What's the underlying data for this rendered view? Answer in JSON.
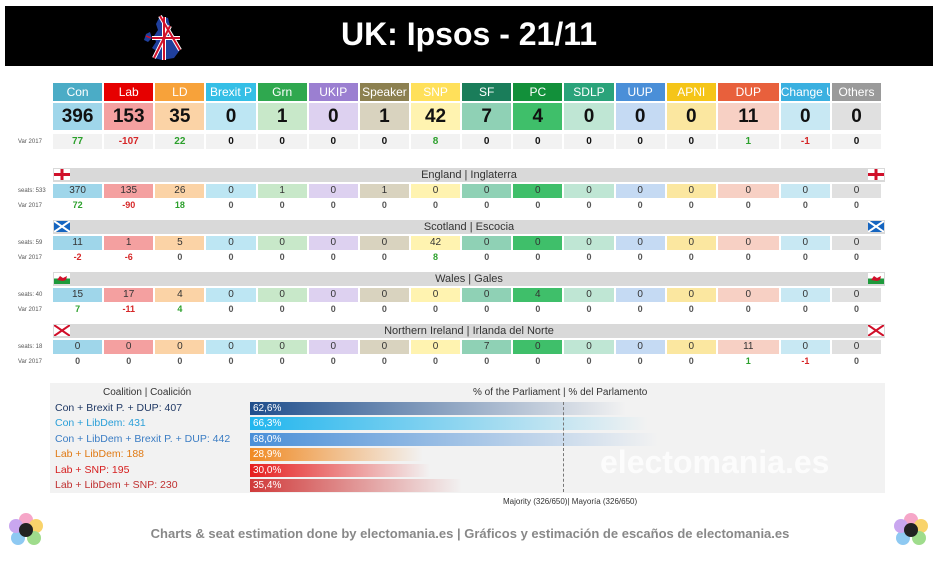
{
  "title": "UK: Ipsos - 21/11",
  "parties": [
    {
      "name": "Con",
      "color": "#4bacc6",
      "light": "#9fd6ea",
      "seats": 396,
      "var": "77",
      "vcls": "pos"
    },
    {
      "name": "Lab",
      "color": "#e60000",
      "light": "#f4a0a0",
      "seats": 153,
      "var": "-107",
      "vcls": "neg"
    },
    {
      "name": "LD",
      "color": "#f7a23a",
      "light": "#fbd3a6",
      "seats": 35,
      "var": "22",
      "vcls": "pos"
    },
    {
      "name": "Brexit P",
      "color": "#35bfe6",
      "light": "#bde6f3",
      "seats": 0,
      "var": "0",
      "vcls": ""
    },
    {
      "name": "Grn",
      "color": "#2fa84f",
      "light": "#c8e8c9",
      "seats": 1,
      "var": "0",
      "vcls": ""
    },
    {
      "name": "UKIP",
      "color": "#9b7fd1",
      "light": "#ddd1f0",
      "seats": 0,
      "var": "0",
      "vcls": ""
    },
    {
      "name": "Speaker",
      "color": "#8c8050",
      "light": "#d9d3bf",
      "seats": 1,
      "var": "0",
      "vcls": ""
    },
    {
      "name": "SNP",
      "color": "#ffe05a",
      "light": "#fff3b0",
      "seats": 42,
      "var": "8",
      "vcls": "pos"
    },
    {
      "name": "SF",
      "color": "#1a7d5a",
      "light": "#8fd1b5",
      "seats": 7,
      "var": "0",
      "vcls": ""
    },
    {
      "name": "PC",
      "color": "#12903a",
      "light": "#3fbf6a",
      "seats": 4,
      "var": "0",
      "vcls": ""
    },
    {
      "name": "SDLP",
      "color": "#2aa37a",
      "light": "#bfe6d4",
      "seats": 0,
      "var": "0",
      "vcls": ""
    },
    {
      "name": "UUP",
      "color": "#4a8fd8",
      "light": "#c5daf3",
      "seats": 0,
      "var": "0",
      "vcls": ""
    },
    {
      "name": "APNI",
      "color": "#f5c518",
      "light": "#fbe7a0",
      "seats": 0,
      "var": "0",
      "vcls": ""
    },
    {
      "name": "DUP",
      "color": "#e8603c",
      "light": "#f7d0c4",
      "seats": 11,
      "var": "1",
      "vcls": "pos"
    },
    {
      "name": "Change UK",
      "color": "#3ab0e0",
      "light": "#c8e8f3",
      "seats": 0,
      "var": "-1",
      "vcls": "neg"
    },
    {
      "name": "Others",
      "color": "#9a9a9a",
      "light": "#e0e0e0",
      "seats": 0,
      "var": "0",
      "vcls": ""
    }
  ],
  "labels": {
    "var2017": "Var 2017"
  },
  "regions": [
    {
      "name": "England | Inglaterra",
      "side": "seats: 533",
      "seats": [
        "370",
        "135",
        "26",
        "0",
        "1",
        "0",
        "1",
        "0",
        "0",
        "0",
        "0",
        "0",
        "0",
        "0",
        "0",
        "0"
      ],
      "var": [
        "72",
        "-90",
        "18",
        "0",
        "0",
        "0",
        "0",
        "0",
        "0",
        "0",
        "0",
        "0",
        "0",
        "0",
        "0",
        "0"
      ]
    },
    {
      "name": "Scotland | Escocia",
      "side": "seats: 59",
      "seats": [
        "11",
        "1",
        "5",
        "0",
        "0",
        "0",
        "0",
        "42",
        "0",
        "0",
        "0",
        "0",
        "0",
        "0",
        "0",
        "0"
      ],
      "var": [
        "-2",
        "-6",
        "0",
        "0",
        "0",
        "0",
        "0",
        "8",
        "0",
        "0",
        "0",
        "0",
        "0",
        "0",
        "0",
        "0"
      ]
    },
    {
      "name": "Wales | Gales",
      "side": "seats: 40",
      "seats": [
        "15",
        "17",
        "4",
        "0",
        "0",
        "0",
        "0",
        "0",
        "0",
        "4",
        "0",
        "0",
        "0",
        "0",
        "0",
        "0"
      ],
      "var": [
        "7",
        "-11",
        "4",
        "0",
        "0",
        "0",
        "0",
        "0",
        "0",
        "0",
        "0",
        "0",
        "0",
        "0",
        "0",
        "0"
      ]
    },
    {
      "name": "Northern Ireland | Irlanda del Norte",
      "side": "seats: 18",
      "seats": [
        "0",
        "0",
        "0",
        "0",
        "0",
        "0",
        "0",
        "0",
        "7",
        "0",
        "0",
        "0",
        "0",
        "11",
        "0",
        "0"
      ],
      "var": [
        "0",
        "0",
        "0",
        "0",
        "0",
        "0",
        "0",
        "0",
        "0",
        "0",
        "0",
        "0",
        "0",
        "1",
        "-1",
        "0"
      ]
    }
  ],
  "coalitions": {
    "header_left": "Coalition | Coalición",
    "header_right": "% of the Parliament | % del Parlamento",
    "majority_label": "Majority (326/650)| Mayoría (326/650)",
    "items": [
      {
        "label": "Con + Brexit P. + DUP: 407",
        "pct": 62.6,
        "pct_text": "62,6%",
        "color": "#1f4e8c",
        "text_color": "#1f3864"
      },
      {
        "label": "Con + LibDem: 431",
        "pct": 66.3,
        "pct_text": "66,3%",
        "color": "#22b6ee",
        "text_color": "#2a9fd8"
      },
      {
        "label": "Con + LibDem + Brexit P. + DUP: 442",
        "pct": 68.0,
        "pct_text": "68,0%",
        "color": "#4a8fd8",
        "text_color": "#3b7dc4"
      },
      {
        "label": "Lab + LibDem: 188",
        "pct": 28.9,
        "pct_text": "28,9%",
        "color": "#f08a24",
        "text_color": "#e07a14"
      },
      {
        "label": "Lab + SNP: 195",
        "pct": 30.0,
        "pct_text": "30,0%",
        "color": "#e61e1e",
        "text_color": "#d61e1e"
      },
      {
        "label": "Lab + LibDem + SNP: 230",
        "pct": 35.4,
        "pct_text": "35,4%",
        "color": "#d03a3a",
        "text_color": "#c03030"
      }
    ]
  },
  "watermark": "electomania.es",
  "footer": "Charts & seat estimation done by electomania.es | Gráficos y estimación de escaños de electomania.es"
}
